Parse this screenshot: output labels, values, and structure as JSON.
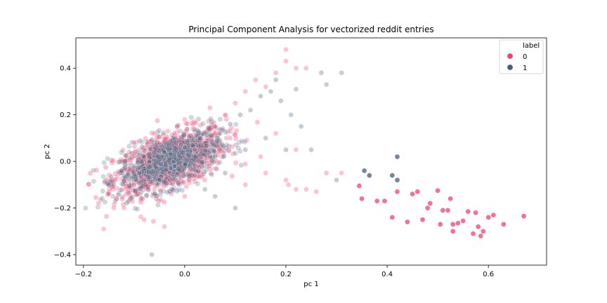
{
  "chart_data": {
    "type": "scatter",
    "title": "Principal Component Analysis for vectorized reddit entries",
    "xlabel": "pc 1",
    "ylabel": "pc 2",
    "xlim": [
      -0.215,
      0.715
    ],
    "ylim": [
      -0.445,
      0.53
    ],
    "x_ticks": [
      -0.2,
      0.0,
      0.2,
      0.4,
      0.6
    ],
    "x_tick_labels": [
      "−0.2",
      "0.0",
      "0.2",
      "0.4",
      "0.6"
    ],
    "y_ticks": [
      -0.4,
      -0.2,
      0.0,
      0.2,
      0.4
    ],
    "y_tick_labels": [
      "−0.4",
      "−0.2",
      "0.0",
      "0.2",
      "0.4"
    ],
    "grid": false,
    "legend": {
      "title": "label",
      "placement": "top-right"
    },
    "series": [
      {
        "name": "0",
        "color": "#f1416c",
        "points": [
          [
            -0.1,
            -0.1
          ],
          [
            -0.08,
            0.02
          ],
          [
            -0.06,
            -0.12
          ],
          [
            -0.05,
            0.08
          ],
          [
            -0.03,
            -0.05
          ],
          [
            -0.02,
            0.12
          ],
          [
            0.0,
            -0.15
          ],
          [
            0.02,
            0.05
          ],
          [
            0.04,
            -0.08
          ],
          [
            0.06,
            0.15
          ],
          [
            0.08,
            0.2
          ],
          [
            0.1,
            0.25
          ],
          [
            0.12,
            0.3
          ],
          [
            0.14,
            0.35
          ],
          [
            0.16,
            0.32
          ],
          [
            0.18,
            0.38
          ],
          [
            0.2,
            0.43
          ],
          [
            0.2,
            0.48
          ],
          [
            0.22,
            0.4
          ],
          [
            0.24,
            0.4
          ],
          [
            0.12,
            -0.1
          ],
          [
            0.16,
            -0.05
          ],
          [
            0.2,
            -0.08
          ],
          [
            0.24,
            -0.12
          ],
          [
            0.28,
            -0.05
          ],
          [
            0.15,
            0.02
          ],
          [
            0.18,
            0.12
          ],
          [
            0.22,
            0.05
          ],
          [
            -0.12,
            -0.2
          ],
          [
            -0.15,
            -0.14
          ],
          [
            -0.17,
            -0.18
          ],
          [
            -0.16,
            -0.29
          ],
          [
            -0.14,
            -0.2
          ],
          [
            -0.08,
            -0.25
          ],
          [
            -0.04,
            -0.28
          ],
          [
            -0.06,
            0.12
          ],
          [
            -0.1,
            0.08
          ],
          [
            0.0,
            0.18
          ],
          [
            0.05,
            0.23
          ],
          [
            0.09,
            0.1
          ],
          [
            0.345,
            -0.105
          ],
          [
            0.35,
            -0.16
          ],
          [
            0.38,
            -0.17
          ],
          [
            0.42,
            -0.13
          ],
          [
            0.45,
            -0.14
          ],
          [
            0.46,
            -0.13
          ],
          [
            0.47,
            -0.25
          ],
          [
            0.48,
            -0.2
          ],
          [
            0.5,
            -0.125
          ],
          [
            0.505,
            -0.27
          ],
          [
            0.51,
            -0.21
          ],
          [
            0.52,
            -0.21
          ],
          [
            0.525,
            -0.16
          ],
          [
            0.53,
            -0.27
          ],
          [
            0.53,
            -0.3
          ],
          [
            0.54,
            -0.265
          ],
          [
            0.55,
            -0.255
          ],
          [
            0.56,
            -0.215
          ],
          [
            0.57,
            -0.31
          ],
          [
            0.575,
            -0.22
          ],
          [
            0.58,
            -0.28
          ],
          [
            0.585,
            -0.32
          ],
          [
            0.59,
            -0.3
          ],
          [
            0.6,
            -0.24
          ],
          [
            0.61,
            -0.23
          ],
          [
            0.63,
            -0.27
          ],
          [
            0.67,
            -0.235
          ],
          [
            0.44,
            -0.26
          ],
          [
            0.41,
            -0.24
          ],
          [
            0.395,
            -0.17
          ],
          [
            0.31,
            -0.05
          ],
          [
            0.22,
            -0.12
          ],
          [
            0.205,
            -0.1
          ],
          [
            0.26,
            -0.13
          ],
          [
            0.485,
            -0.18
          ]
        ]
      },
      {
        "name": "1",
        "color": "#4a5d78",
        "points": [
          [
            -0.09,
            -0.05
          ],
          [
            -0.07,
            0.0
          ],
          [
            -0.05,
            -0.08
          ],
          [
            -0.04,
            0.04
          ],
          [
            -0.02,
            -0.02
          ],
          [
            0.0,
            0.06
          ],
          [
            0.02,
            -0.06
          ],
          [
            0.03,
            0.1
          ],
          [
            0.05,
            0.02
          ],
          [
            0.07,
            0.12
          ],
          [
            0.09,
            0.16
          ],
          [
            0.11,
            0.2
          ],
          [
            0.13,
            0.22
          ],
          [
            0.15,
            0.28
          ],
          [
            0.17,
            0.3
          ],
          [
            0.19,
            0.26
          ],
          [
            0.21,
            0.2
          ],
          [
            0.23,
            0.15
          ],
          [
            0.25,
            0.05
          ],
          [
            0.27,
            0.38
          ],
          [
            0.31,
            0.38
          ],
          [
            0.28,
            0.33
          ],
          [
            0.06,
            -0.15
          ],
          [
            0.1,
            -0.2
          ],
          [
            -0.065,
            -0.4
          ],
          [
            -0.125,
            -0.04
          ],
          [
            -0.145,
            -0.065
          ],
          [
            0.355,
            -0.04
          ],
          [
            0.42,
            0.02
          ],
          [
            0.41,
            -0.06
          ],
          [
            0.365,
            -0.06
          ],
          [
            0.3,
            -0.08
          ],
          [
            0.16,
            0.1
          ],
          [
            0.2,
            0.05
          ],
          [
            0.12,
            0.05
          ],
          [
            0.08,
            -0.05
          ],
          [
            0.04,
            -0.12
          ],
          [
            0.42,
            -0.08
          ],
          [
            0.22,
            0.31
          ],
          [
            0.18,
            0.35
          ]
        ]
      }
    ],
    "dense_clusters": [
      {
        "series": "0",
        "center": [
          -0.03,
          0.0
        ],
        "spread": [
          0.055,
          0.07
        ],
        "corr": 0.55,
        "count": 900,
        "opacity": 0.3
      },
      {
        "series": "1",
        "center": [
          -0.03,
          0.0
        ],
        "spread": [
          0.05,
          0.065
        ],
        "corr": 0.55,
        "count": 900,
        "opacity": 0.25
      }
    ]
  }
}
